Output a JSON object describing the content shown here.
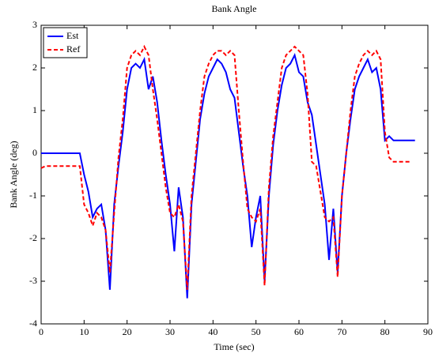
{
  "chart_data": {
    "type": "line",
    "title": "Bank Angle",
    "x_label": "Time (sec)",
    "y_label": "Bank Angle (deg)",
    "x": [
      0,
      1,
      2,
      3,
      4,
      5,
      6,
      7,
      8,
      9,
      10,
      11,
      12,
      13,
      14,
      15,
      16,
      17,
      18,
      19,
      20,
      21,
      22,
      23,
      24,
      25,
      26,
      27,
      28,
      29,
      30,
      31,
      32,
      33,
      34,
      35,
      36,
      37,
      38,
      39,
      40,
      41,
      42,
      43,
      44,
      45,
      46,
      47,
      48,
      49,
      50,
      51,
      52,
      53,
      54,
      55,
      56,
      57,
      58,
      59,
      60,
      61,
      62,
      63,
      64,
      65,
      66,
      67,
      68,
      69,
      70,
      71,
      72,
      73,
      74,
      75,
      76,
      77,
      78,
      79,
      80,
      81,
      82,
      83,
      84,
      85,
      86,
      87
    ],
    "series": [
      {
        "name": "Est",
        "color": "#0000ff",
        "dash": "solid",
        "values": [
          0,
          0,
          0,
          0,
          0,
          0,
          0,
          0,
          0,
          0,
          -0.5,
          -0.9,
          -1.5,
          -1.3,
          -1.2,
          -1.8,
          -3.2,
          -1.2,
          -0.3,
          0.5,
          1.5,
          2.0,
          2.1,
          2.0,
          2.2,
          1.5,
          1.8,
          1.2,
          0.3,
          -0.5,
          -1.2,
          -2.3,
          -0.8,
          -1.5,
          -3.4,
          -1.2,
          -0.2,
          0.8,
          1.4,
          1.8,
          2.0,
          2.2,
          2.1,
          1.9,
          1.5,
          1.3,
          0.5,
          -0.3,
          -1.0,
          -2.2,
          -1.5,
          -1.0,
          -3.0,
          -1.0,
          0.2,
          1.0,
          1.6,
          2.0,
          2.1,
          2.3,
          1.9,
          1.8,
          1.2,
          0.9,
          0.2,
          -0.5,
          -1.2,
          -2.5,
          -1.3,
          -2.8,
          -1.0,
          0.0,
          0.8,
          1.5,
          1.8,
          2.0,
          2.2,
          1.9,
          2.0,
          1.5,
          0.3,
          0.4,
          0.3,
          0.3,
          0.3,
          0.3,
          0.3,
          0.3
        ]
      },
      {
        "name": "Ref",
        "color": "#ff0000",
        "dash": "dashed",
        "values": [
          -0.35,
          -0.3,
          -0.3,
          -0.3,
          -0.3,
          -0.3,
          -0.3,
          -0.3,
          -0.3,
          -0.3,
          -1.2,
          -1.4,
          -1.7,
          -1.4,
          -1.5,
          -1.8,
          -2.8,
          -1.4,
          -0.1,
          0.8,
          2.0,
          2.3,
          2.4,
          2.3,
          2.5,
          2.3,
          1.5,
          0.8,
          0.0,
          -0.8,
          -1.4,
          -1.5,
          -1.2,
          -1.6,
          -3.2,
          -1.0,
          0.0,
          1.0,
          1.8,
          2.1,
          2.3,
          2.4,
          2.4,
          2.3,
          2.4,
          2.3,
          1.0,
          -0.2,
          -1.3,
          -1.5,
          -1.6,
          -1.3,
          -3.1,
          -0.8,
          0.4,
          1.2,
          2.0,
          2.3,
          2.4,
          2.5,
          2.4,
          2.3,
          1.4,
          -0.2,
          -0.3,
          -0.9,
          -1.5,
          -1.6,
          -1.5,
          -2.9,
          -1.0,
          0.0,
          1.0,
          1.8,
          2.1,
          2.3,
          2.4,
          2.3,
          2.4,
          2.2,
          0.5,
          -0.1,
          -0.2,
          -0.2,
          -0.2,
          -0.2,
          -0.2,
          null
        ]
      }
    ],
    "xlim": [
      0,
      90
    ],
    "xticks": [
      0,
      10,
      20,
      30,
      40,
      50,
      60,
      70,
      80,
      90
    ],
    "ylim": [
      -4,
      3
    ],
    "yticks": [
      -4,
      -3,
      -2,
      -1,
      0,
      1,
      2,
      3
    ],
    "legend": "upper left"
  }
}
